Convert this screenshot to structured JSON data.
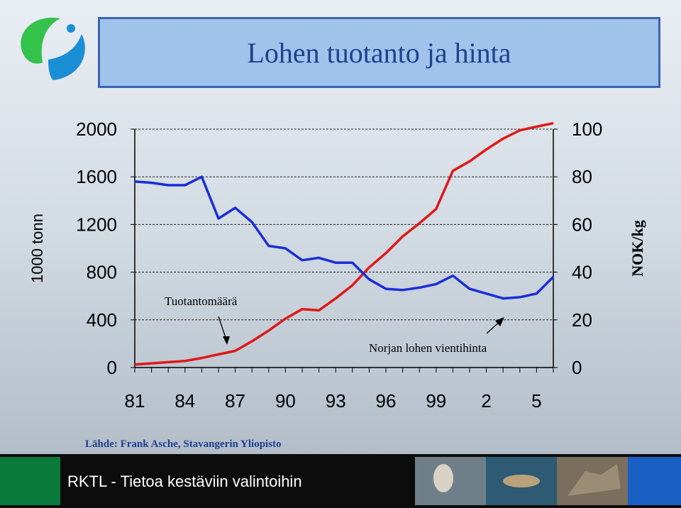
{
  "title": "Lohen tuotanto ja hinta",
  "source": "Lähde: Frank Asche, Stavangerin Yliopisto",
  "footer": "RKTL - Tietoa kestäviin valintoihin",
  "colors": {
    "production": "#e01818",
    "price": "#1a2fd6",
    "title_text": "#1f3f8f",
    "title_bg": "#9fc3ea"
  },
  "chart_data": {
    "type": "line",
    "x_tick_labels": [
      "81",
      "84",
      "87",
      "90",
      "93",
      "96",
      "99",
      "2",
      "5"
    ],
    "x_years": [
      1981,
      1982,
      1983,
      1984,
      1985,
      1986,
      1987,
      1988,
      1989,
      1990,
      1991,
      1992,
      1993,
      1994,
      1995,
      1996,
      1997,
      1998,
      1999,
      2000,
      2001,
      2002,
      2003,
      2004,
      2005,
      2006
    ],
    "ylabel_left": "1000 tonn",
    "ylabel_right": "NOK/kg",
    "ylim_left": [
      0,
      2000
    ],
    "ylim_right": [
      0,
      100
    ],
    "y_ticks_left": [
      "2000",
      "1600",
      "1200",
      "800",
      "400",
      "0"
    ],
    "y_ticks_right": [
      "100",
      "80",
      "60",
      "40",
      "20",
      "0"
    ],
    "series": [
      {
        "name": "Tuotantomäärä",
        "axis": "left",
        "values": [
          25,
          35,
          45,
          55,
          80,
          110,
          140,
          220,
          310,
          410,
          490,
          480,
          580,
          690,
          840,
          960,
          1100,
          1210,
          1330,
          1650,
          1730,
          1830,
          1920,
          1990,
          2020,
          2050
        ]
      },
      {
        "name": "Norjan lohen vientihinta",
        "axis": "right",
        "values": [
          78,
          77.5,
          76.5,
          76.5,
          80,
          62.5,
          67,
          61,
          51,
          50,
          45,
          46,
          44,
          44,
          37,
          33,
          32.5,
          33.5,
          35,
          38.5,
          33,
          31,
          29,
          29.5,
          31,
          38
        ]
      }
    ],
    "annotations": [
      "Tuotantomäärä",
      "Norjan lohen vientihinta"
    ]
  }
}
